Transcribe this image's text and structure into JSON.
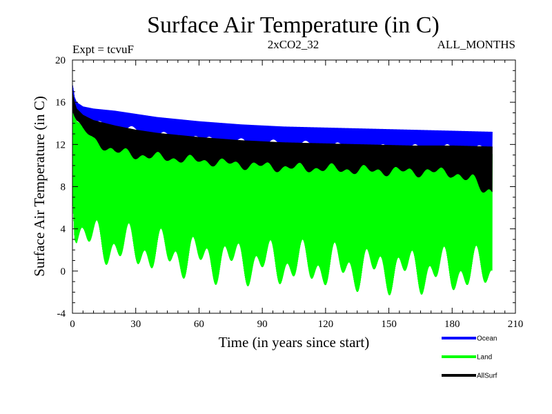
{
  "chart_data": {
    "type": "line",
    "title": "Surface Air Temperature (in C)",
    "subtitle_left": "Expt = tcvuF",
    "subtitle_center": "2xCO2_32",
    "subtitle_right": "ALL_MONTHS",
    "xlabel": "Time (in years since start)",
    "ylabel": "Surface Air Temperature (in C)",
    "xlim": [
      0,
      210
    ],
    "ylim": [
      -4,
      20
    ],
    "x_ticks": [
      0,
      30,
      60,
      90,
      120,
      150,
      180,
      210
    ],
    "y_ticks": [
      -4,
      0,
      4,
      8,
      12,
      16,
      20
    ],
    "x_tick_labels": [
      "0",
      "30",
      "60",
      "90",
      "120",
      "150",
      "180",
      "210"
    ],
    "y_tick_labels": [
      "-4",
      "0",
      "4",
      "8",
      "12",
      "16",
      "20"
    ],
    "legend_position": "bottom-right, below plot",
    "series": [
      {
        "name": "Ocean",
        "color": "#0000ff",
        "x": [
          0,
          1,
          2,
          5,
          10,
          20,
          30,
          40,
          60,
          80,
          100,
          120,
          140,
          160,
          180,
          199
        ],
        "max": [
          17.8,
          16.5,
          16.0,
          15.6,
          15.4,
          15.2,
          14.9,
          14.6,
          14.2,
          13.9,
          13.7,
          13.6,
          13.5,
          13.4,
          13.3,
          13.2
        ],
        "min": [
          16.2,
          15.2,
          14.5,
          14.0,
          13.7,
          13.3,
          13.0,
          12.6,
          12.2,
          11.9,
          11.7,
          11.6,
          11.4,
          11.3,
          11.3,
          11.2
        ]
      },
      {
        "name": "Land",
        "color": "#00ff00",
        "x": [
          0,
          1,
          2,
          5,
          10,
          20,
          30,
          40,
          60,
          80,
          100,
          120,
          140,
          160,
          180,
          199
        ],
        "max": [
          15.3,
          14.6,
          14.2,
          13.8,
          13.5,
          13.2,
          12.9,
          12.6,
          12.2,
          11.9,
          11.7,
          11.6,
          11.4,
          11.3,
          11.2,
          11.1
        ],
        "min": [
          7.0,
          3.0,
          2.0,
          1.0,
          0.5,
          0.0,
          -0.3,
          -0.6,
          -1.2,
          -1.5,
          -1.8,
          -2.0,
          -2.2,
          -2.4,
          -2.5,
          -2.5
        ]
      },
      {
        "name": "AllSurf",
        "color": "#000000",
        "x": [
          0,
          1,
          2,
          5,
          10,
          20,
          30,
          40,
          60,
          80,
          100,
          120,
          140,
          160,
          180,
          199
        ],
        "max": [
          17.0,
          16.0,
          15.4,
          14.8,
          14.3,
          13.8,
          13.4,
          13.1,
          12.7,
          12.4,
          12.2,
          12.1,
          12.0,
          11.9,
          11.9,
          11.8
        ],
        "min": [
          15.2,
          14.5,
          14.0,
          13.2,
          12.0,
          10.8,
          10.5,
          10.3,
          10.0,
          9.6,
          9.3,
          9.2,
          9.0,
          8.9,
          8.8,
          6.7
        ]
      }
    ]
  }
}
